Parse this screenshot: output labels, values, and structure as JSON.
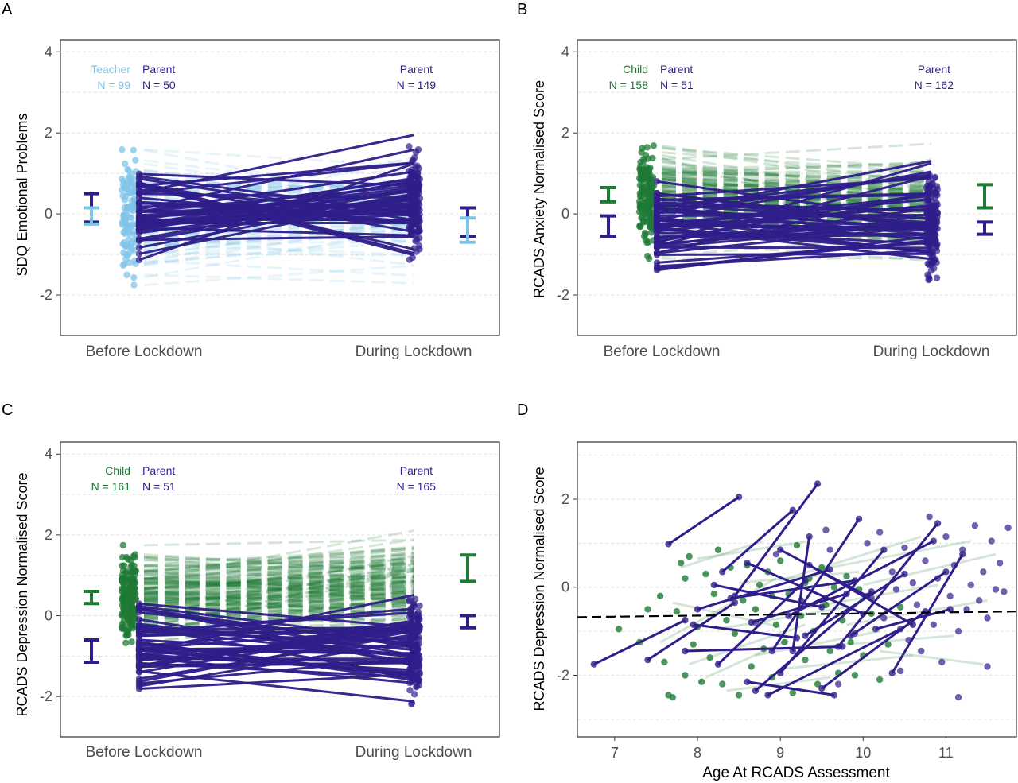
{
  "colors": {
    "teacher": "#7fc4e8",
    "parent": "#2f1e8a",
    "child": "#1f7a35",
    "panel_border": "#333333",
    "grid": "#e3e3e3",
    "tick_label": "#4d4d4d"
  },
  "chart_data": [
    {
      "panel_letter": "A",
      "type": "line",
      "ylabel": "SDQ Emotional Problems",
      "xlabel": "",
      "categories": [
        "Before Lockdown",
        "During Lockdown"
      ],
      "ylim": [
        -3,
        4.3
      ],
      "yticks": [
        -2,
        0,
        2,
        4
      ],
      "grid": true,
      "groups": [
        {
          "label": "Teacher",
          "n_label": "N = 99",
          "role": "teacher",
          "time": "Before Lockdown"
        },
        {
          "label": "Parent",
          "n_label": "N = 50",
          "role": "parent",
          "time": "Before Lockdown"
        },
        {
          "label": "Parent",
          "n_label": "N = 149",
          "role": "parent",
          "time": "During Lockdown"
        }
      ],
      "error_bars": [
        {
          "role": "parent",
          "time": "Before Lockdown",
          "side": "left",
          "low": -0.2,
          "high": 0.5
        },
        {
          "role": "teacher",
          "time": "Before Lockdown",
          "side": "left",
          "low": -0.25,
          "high": 0.15
        },
        {
          "role": "parent",
          "time": "During Lockdown",
          "side": "right",
          "low": -0.55,
          "high": 0.15
        },
        {
          "role": "teacher",
          "time": "During Lockdown",
          "side": "right",
          "low": -0.7,
          "high": -0.1
        }
      ]
    },
    {
      "panel_letter": "B",
      "type": "line",
      "ylabel": "RCADS Anxiety Normalised Score",
      "xlabel": "",
      "categories": [
        "Before Lockdown",
        "During Lockdown"
      ],
      "ylim": [
        -3,
        4.3
      ],
      "yticks": [
        -2,
        0,
        2,
        4
      ],
      "grid": true,
      "groups": [
        {
          "label": "Child",
          "n_label": "N = 158",
          "role": "child",
          "time": "Before Lockdown"
        },
        {
          "label": "Parent",
          "n_label": "N = 51",
          "role": "parent",
          "time": "Before Lockdown"
        },
        {
          "label": "Parent",
          "n_label": "N = 162",
          "role": "parent",
          "time": "During Lockdown"
        }
      ],
      "error_bars": [
        {
          "role": "child",
          "time": "Before Lockdown",
          "side": "left",
          "low": 0.3,
          "high": 0.65
        },
        {
          "role": "parent",
          "time": "Before Lockdown",
          "side": "left",
          "low": -0.55,
          "high": -0.05
        },
        {
          "role": "child",
          "time": "During Lockdown",
          "side": "right",
          "low": 0.15,
          "high": 0.72
        },
        {
          "role": "parent",
          "time": "During Lockdown",
          "side": "right",
          "low": -0.5,
          "high": -0.2
        }
      ]
    },
    {
      "panel_letter": "C",
      "type": "line",
      "ylabel": "RCADS Depression Normalised Score",
      "xlabel": "",
      "categories": [
        "Before Lockdown",
        "During Lockdown"
      ],
      "ylim": [
        -3,
        4.3
      ],
      "yticks": [
        -2,
        0,
        2,
        4
      ],
      "grid": true,
      "groups": [
        {
          "label": "Child",
          "n_label": "N = 161",
          "role": "child",
          "time": "Before Lockdown"
        },
        {
          "label": "Parent",
          "n_label": "N = 51",
          "role": "parent",
          "time": "Before Lockdown"
        },
        {
          "label": "Parent",
          "n_label": "N = 165",
          "role": "parent",
          "time": "During Lockdown"
        }
      ],
      "error_bars": [
        {
          "role": "child",
          "time": "Before Lockdown",
          "side": "left",
          "low": 0.3,
          "high": 0.6
        },
        {
          "role": "parent",
          "time": "Before Lockdown",
          "side": "left",
          "low": -1.15,
          "high": -0.6
        },
        {
          "role": "child",
          "time": "During Lockdown",
          "side": "right",
          "low": 0.85,
          "high": 1.5
        },
        {
          "role": "parent",
          "time": "During Lockdown",
          "side": "right",
          "low": -0.3,
          "high": 0.0
        }
      ]
    },
    {
      "panel_letter": "D",
      "type": "scatter",
      "ylabel": "RCADS Depression Normalised Score",
      "xlabel": "Age At RCADS Assessment",
      "xlim": [
        6.55,
        11.85
      ],
      "ylim": [
        -3.4,
        3.3
      ],
      "xticks": [
        7,
        8,
        9,
        10,
        11
      ],
      "yticks": [
        -2,
        0,
        2
      ],
      "grid": true,
      "trend_line": {
        "style": "dashed",
        "color": "#000000",
        "points": [
          [
            6.55,
            -0.68
          ],
          [
            11.85,
            -0.55
          ]
        ]
      },
      "parent_segments": [
        [
          [
            7.65,
            0.98
          ],
          [
            8.5,
            2.05
          ]
        ],
        [
          [
            8.3,
            0.35
          ],
          [
            9.15,
            1.75
          ]
        ],
        [
          [
            8.45,
            -0.2
          ],
          [
            9.45,
            2.35
          ]
        ],
        [
          [
            6.75,
            -1.75
          ],
          [
            7.85,
            -0.75
          ]
        ],
        [
          [
            7.4,
            -1.65
          ],
          [
            8.45,
            -0.35
          ]
        ],
        [
          [
            7.85,
            -1.45
          ],
          [
            9.75,
            -1.35
          ]
        ],
        [
          [
            8.25,
            -1.75
          ],
          [
            9.3,
            0.15
          ]
        ],
        [
          [
            8.7,
            -2.35
          ],
          [
            10.1,
            -0.1
          ]
        ],
        [
          [
            8.85,
            -2.45
          ],
          [
            10.45,
            -0.95
          ]
        ],
        [
          [
            9.0,
            -1.95
          ],
          [
            10.25,
            0.85
          ]
        ],
        [
          [
            8.9,
            -1.45
          ],
          [
            9.95,
            1.55
          ]
        ],
        [
          [
            8.65,
            -0.8
          ],
          [
            9.8,
            -0.15
          ]
        ],
        [
          [
            9.1,
            -0.65
          ],
          [
            10.85,
            1.05
          ]
        ],
        [
          [
            9.3,
            -1.1
          ],
          [
            10.5,
            0.3
          ]
        ],
        [
          [
            8.0,
            -0.5
          ],
          [
            9.6,
            0.4
          ]
        ],
        [
          [
            9.15,
            -1.45
          ],
          [
            9.35,
            1.15
          ]
        ],
        [
          [
            8.6,
            -2.15
          ],
          [
            9.65,
            -2.45
          ]
        ],
        [
          [
            9.5,
            -2.3
          ],
          [
            10.75,
            -0.55
          ]
        ],
        [
          [
            9.7,
            -1.35
          ],
          [
            10.9,
            1.45
          ]
        ],
        [
          [
            9.85,
            -1.1
          ],
          [
            11.0,
            0.35
          ]
        ],
        [
          [
            10.15,
            -0.95
          ],
          [
            11.05,
            -0.5
          ]
        ],
        [
          [
            10.35,
            -1.95
          ],
          [
            11.2,
            0.75
          ]
        ],
        [
          [
            8.2,
            0.05
          ],
          [
            9.5,
            -0.45
          ]
        ],
        [
          [
            8.6,
            0.55
          ],
          [
            10.0,
            -0.6
          ]
        ],
        [
          [
            7.95,
            -0.85
          ],
          [
            9.2,
            -1.15
          ]
        ],
        [
          [
            8.4,
            -0.25
          ],
          [
            9.9,
            0.15
          ]
        ],
        [
          [
            9.0,
            0.85
          ],
          [
            10.05,
            -0.2
          ]
        ],
        [
          [
            9.35,
            0.5
          ],
          [
            10.6,
            -0.85
          ]
        ]
      ],
      "child_segments": [
        [
          [
            7.8,
            0.45
          ],
          [
            8.8,
            1.05
          ]
        ],
        [
          [
            7.9,
            -1.75
          ],
          [
            9.3,
            -0.85
          ]
        ],
        [
          [
            8.0,
            0.65
          ],
          [
            9.35,
            1.05
          ]
        ],
        [
          [
            8.1,
            -2.05
          ],
          [
            9.1,
            -1.2
          ]
        ],
        [
          [
            8.25,
            -0.95
          ],
          [
            9.8,
            -0.45
          ]
        ],
        [
          [
            8.5,
            0.1
          ],
          [
            9.95,
            0.35
          ]
        ],
        [
          [
            8.7,
            -1.55
          ],
          [
            10.2,
            -1.0
          ]
        ],
        [
          [
            9.0,
            0.15
          ],
          [
            10.7,
            1.15
          ]
        ],
        [
          [
            9.2,
            -0.5
          ],
          [
            10.9,
            0.05
          ]
        ],
        [
          [
            9.45,
            -1.35
          ],
          [
            11.1,
            -1.1
          ]
        ],
        [
          [
            9.6,
            0.45
          ],
          [
            11.3,
            1.05
          ]
        ],
        [
          [
            9.8,
            -0.85
          ],
          [
            11.5,
            -0.3
          ]
        ],
        [
          [
            10.0,
            0.05
          ],
          [
            11.6,
            0.75
          ]
        ],
        [
          [
            10.2,
            -1.45
          ],
          [
            11.45,
            -1.75
          ]
        ],
        [
          [
            7.7,
            -0.35
          ],
          [
            9.0,
            -0.9
          ]
        ],
        [
          [
            8.35,
            -2.35
          ],
          [
            9.6,
            -2.05
          ]
        ],
        [
          [
            9.05,
            -1.85
          ],
          [
            10.6,
            -1.55
          ]
        ],
        [
          [
            7.55,
            -1.25
          ],
          [
            8.95,
            0.2
          ]
        ]
      ],
      "child_points": [
        [
          7.05,
          -0.95
        ],
        [
          7.3,
          -1.25
        ],
        [
          7.4,
          -0.5
        ],
        [
          7.55,
          -0.2
        ],
        [
          7.6,
          -1.7
        ],
        [
          7.65,
          -2.45
        ],
        [
          7.7,
          -2.5
        ],
        [
          7.75,
          -0.55
        ],
        [
          7.8,
          0.55
        ],
        [
          7.85,
          -2.0
        ],
        [
          7.85,
          0.2
        ],
        [
          7.9,
          0.7
        ],
        [
          7.95,
          -1.3
        ],
        [
          8.0,
          -0.9
        ],
        [
          8.05,
          -2.15
        ],
        [
          8.1,
          0.3
        ],
        [
          8.15,
          -1.6
        ],
        [
          8.2,
          -0.15
        ],
        [
          8.25,
          0.85
        ],
        [
          8.3,
          -2.2
        ],
        [
          8.35,
          -0.75
        ],
        [
          8.4,
          0.45
        ],
        [
          8.45,
          -1.05
        ],
        [
          8.5,
          -2.45
        ],
        [
          8.55,
          -0.3
        ],
        [
          8.6,
          0.5
        ],
        [
          8.65,
          -1.8
        ],
        [
          8.7,
          -0.5
        ],
        [
          8.75,
          0.05
        ],
        [
          8.8,
          -1.4
        ],
        [
          8.85,
          0.35
        ],
        [
          8.9,
          -2.05
        ],
        [
          8.95,
          -0.85
        ],
        [
          9.0,
          0.6
        ],
        [
          9.05,
          -1.25
        ],
        [
          9.1,
          -0.15
        ],
        [
          9.15,
          -2.4
        ],
        [
          9.2,
          0.95
        ],
        [
          9.25,
          -0.65
        ],
        [
          9.3,
          -1.65
        ],
        [
          9.35,
          0.2
        ],
        [
          9.4,
          -1.0
        ],
        [
          9.45,
          -2.2
        ],
        [
          9.5,
          0.45
        ],
        [
          9.55,
          -0.4
        ],
        [
          9.6,
          -1.45
        ],
        [
          9.65,
          0.0
        ],
        [
          9.7,
          -1.95
        ],
        [
          9.75,
          -0.75
        ],
        [
          9.8,
          0.25
        ],
        [
          9.85,
          -1.25
        ],
        [
          9.9,
          -2.0
        ],
        [
          9.95,
          -0.05
        ],
        [
          10.0,
          -1.55
        ],
        [
          10.1,
          -0.6
        ],
        [
          10.2,
          -2.1
        ],
        [
          10.3,
          -1.3
        ],
        [
          10.45,
          -0.45
        ],
        [
          8.9,
          -0.2
        ],
        [
          9.3,
          0.1
        ]
      ],
      "parent_points": [
        [
          8.7,
          -0.8
        ],
        [
          8.95,
          0.75
        ],
        [
          9.25,
          -0.3
        ],
        [
          9.55,
          1.3
        ],
        [
          9.7,
          -2.2
        ],
        [
          9.9,
          -1.05
        ],
        [
          10.05,
          1.0
        ],
        [
          10.1,
          -0.25
        ],
        [
          10.2,
          1.25
        ],
        [
          10.25,
          -0.7
        ],
        [
          10.35,
          0.35
        ],
        [
          10.45,
          -1.9
        ],
        [
          10.5,
          0.9
        ],
        [
          10.55,
          -1.2
        ],
        [
          10.6,
          0.1
        ],
        [
          10.65,
          -0.4
        ],
        [
          10.7,
          -1.45
        ],
        [
          10.75,
          0.6
        ],
        [
          10.8,
          1.6
        ],
        [
          10.85,
          -0.85
        ],
        [
          10.9,
          0.2
        ],
        [
          10.95,
          -1.7
        ],
        [
          11.0,
          1.15
        ],
        [
          11.05,
          -0.2
        ],
        [
          11.1,
          0.5
        ],
        [
          11.15,
          -1.0
        ],
        [
          11.2,
          0.85
        ],
        [
          11.25,
          -0.5
        ],
        [
          11.3,
          0.05
        ],
        [
          11.35,
          1.4
        ],
        [
          11.4,
          -0.3
        ],
        [
          11.45,
          0.35
        ],
        [
          11.5,
          -0.7
        ],
        [
          11.55,
          1.05
        ],
        [
          11.6,
          -0.05
        ],
        [
          11.65,
          0.55
        ],
        [
          11.7,
          -0.1
        ],
        [
          11.75,
          1.35
        ],
        [
          11.5,
          -1.8
        ],
        [
          11.15,
          -2.5
        ],
        [
          9.6,
          0.85
        ],
        [
          10.4,
          -0.05
        ]
      ]
    }
  ]
}
